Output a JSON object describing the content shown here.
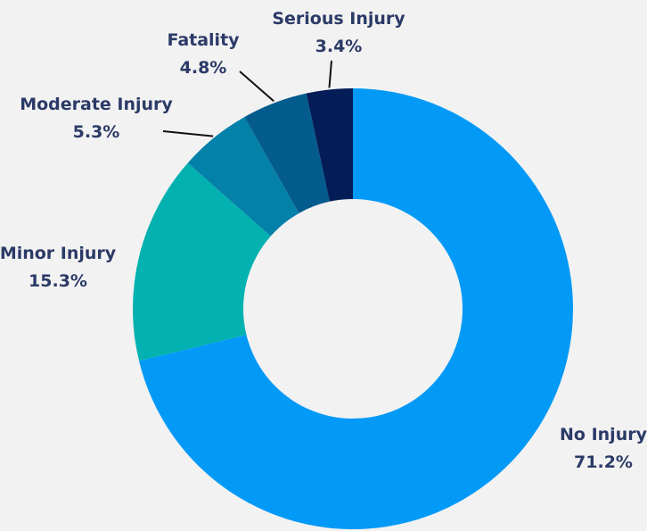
{
  "chart_data": {
    "type": "pie",
    "donut": true,
    "title": "",
    "label_color": "#2b3a67",
    "start": "12 o'clock, clockwise",
    "series": [
      {
        "name": "No Injury",
        "percent_label": "71.2%",
        "value": 71.2,
        "color": "#0399f7"
      },
      {
        "name": "Minor Injury",
        "percent_label": "15.3%",
        "value": 15.3,
        "color": "#03b2b0"
      },
      {
        "name": "Moderate Injury",
        "percent_label": "5.3%",
        "value": 5.3,
        "color": "#0481a8"
      },
      {
        "name": "Fatality",
        "percent_label": "4.8%",
        "value": 4.8,
        "color": "#045c8e"
      },
      {
        "name": "Serious Injury",
        "percent_label": "3.4%",
        "value": 3.4,
        "color": "#041d57"
      }
    ]
  }
}
